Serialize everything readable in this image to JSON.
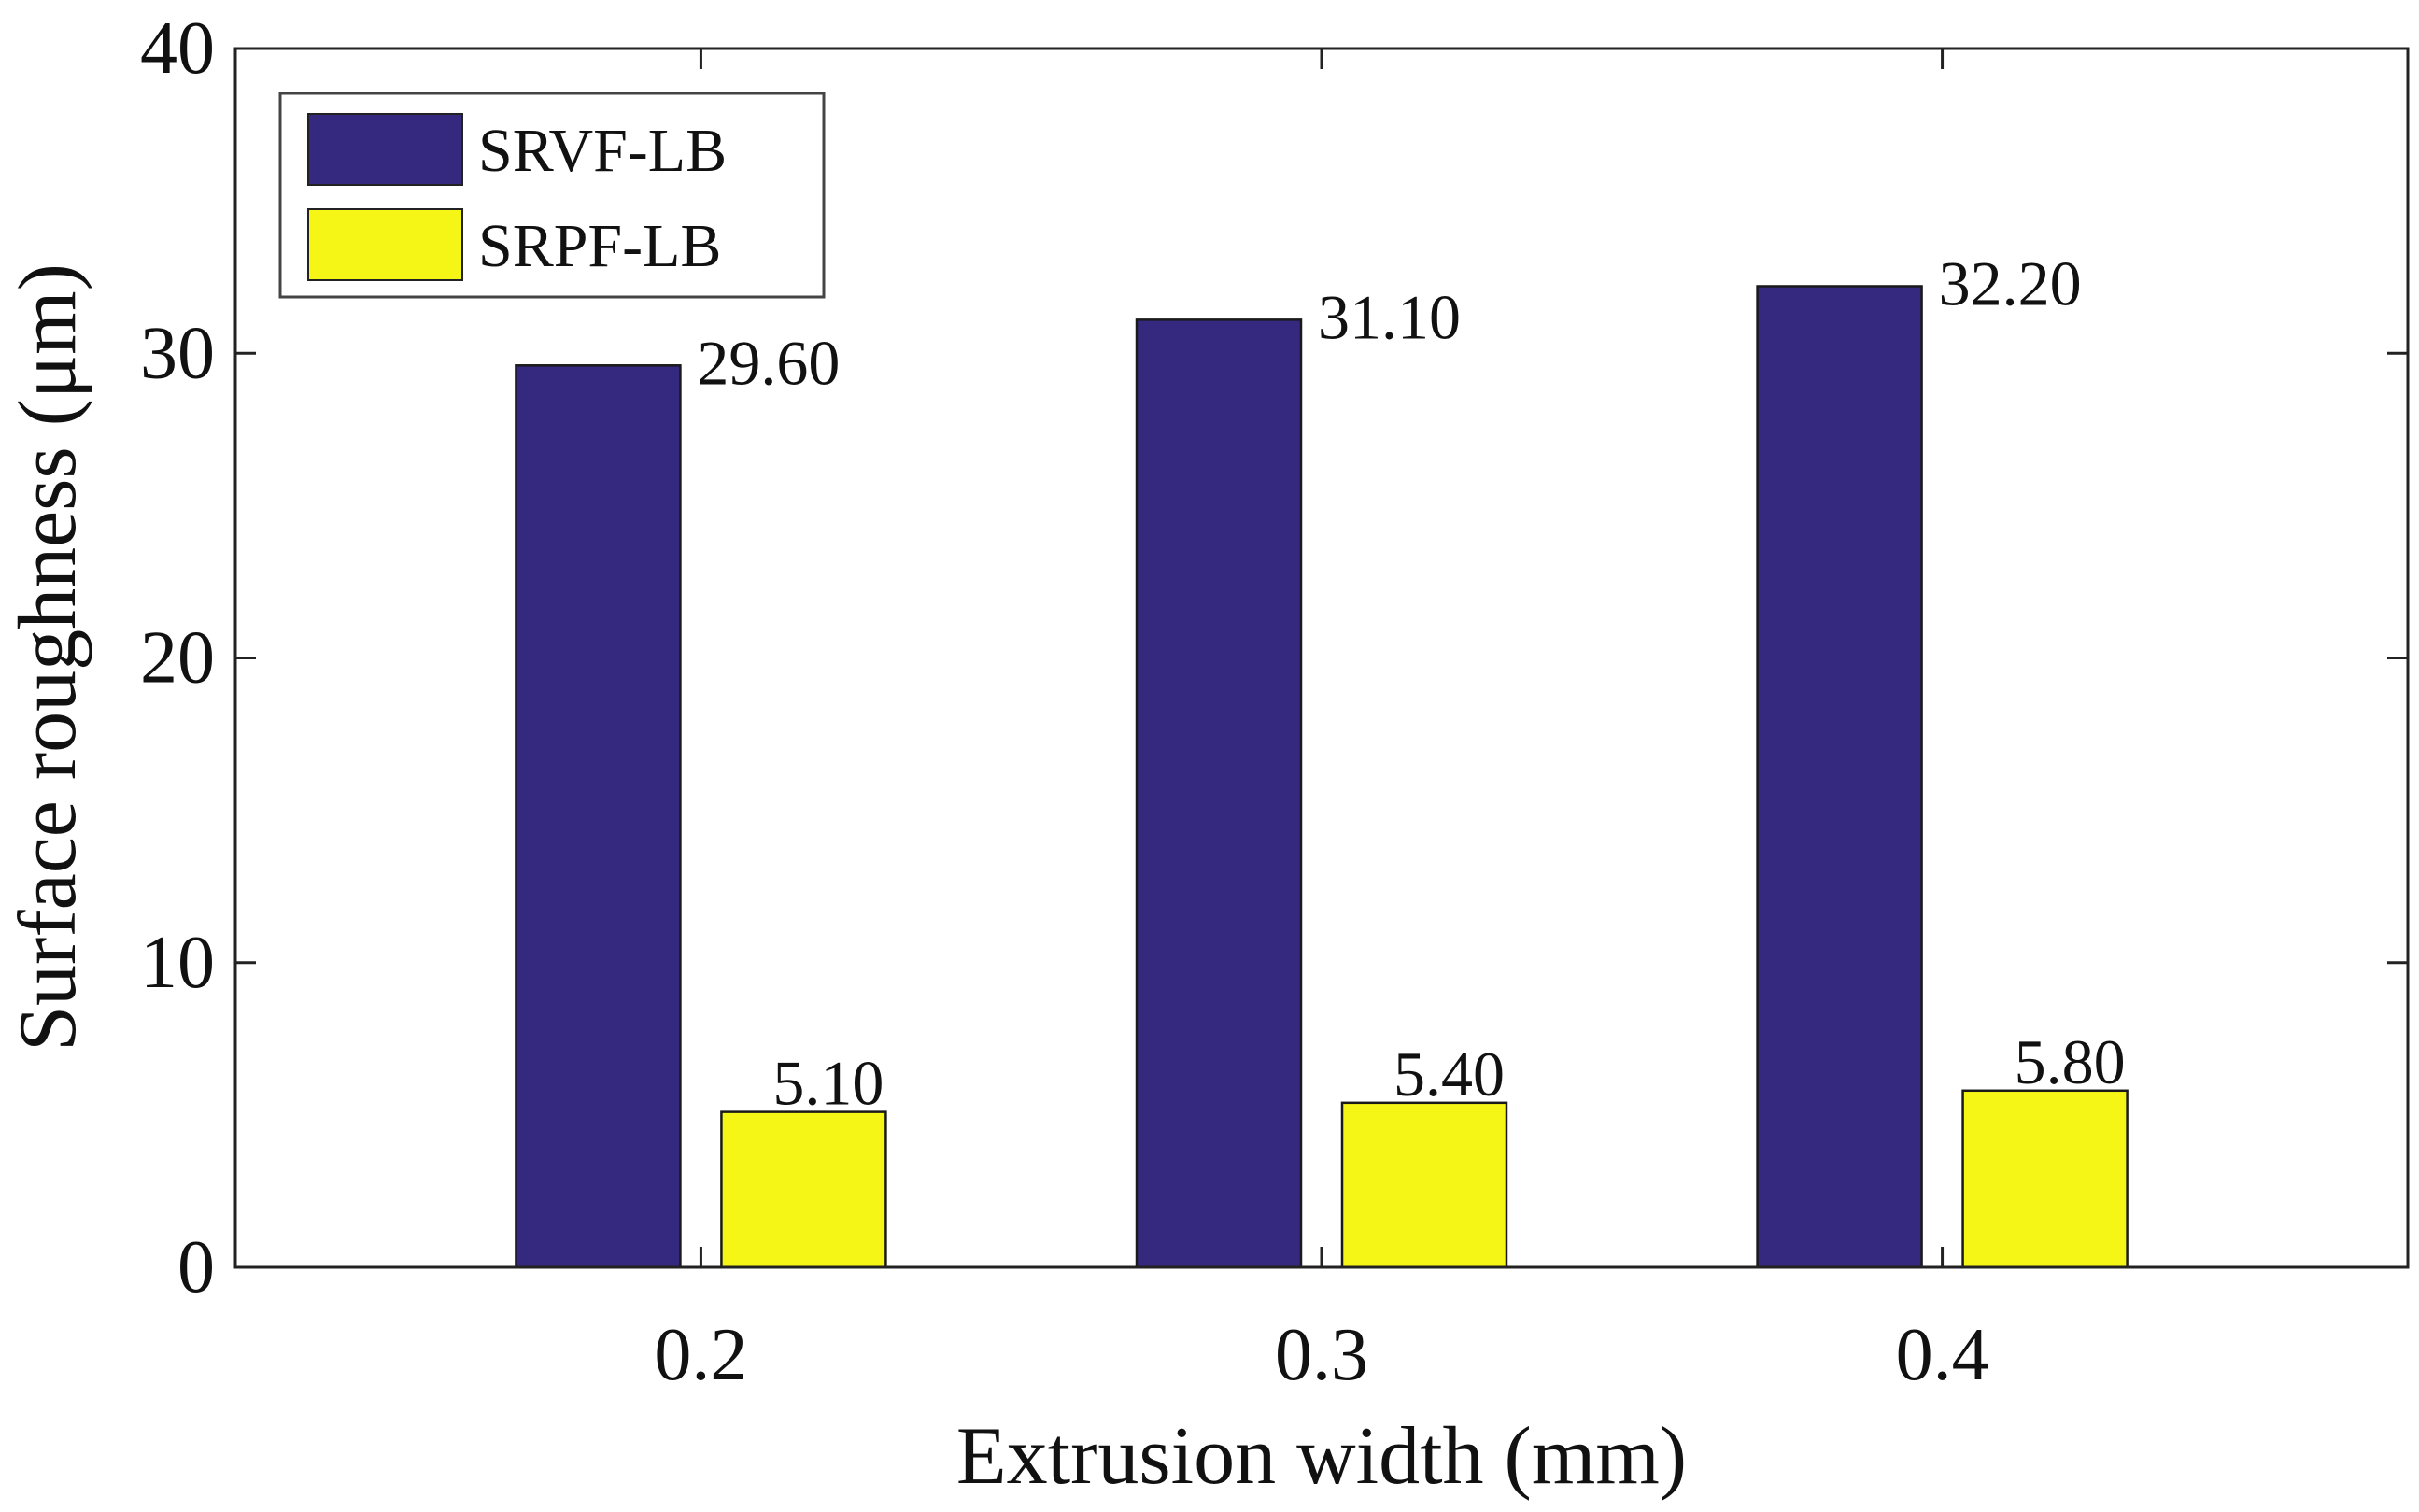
{
  "chart_data": {
    "type": "bar",
    "title": "",
    "xlabel": "Extrusion width (mm)",
    "ylabel": "Surface roughness (μm)",
    "categories": [
      "0.2",
      "0.3",
      "0.4"
    ],
    "ylim": [
      0,
      40
    ],
    "yticks": [
      0,
      10,
      20,
      30,
      40
    ],
    "ytick_labels": [
      "0",
      "10",
      "20",
      "30",
      "40"
    ],
    "grid": false,
    "legend_position": "top-left",
    "series": [
      {
        "name": "SRVF-LB",
        "color": "#34287f",
        "values": [
          29.6,
          31.1,
          32.2
        ],
        "labels": [
          "29.60",
          "31.10",
          "32.20"
        ]
      },
      {
        "name": "SRPF-LB",
        "color": "#f5f516",
        "values": [
          5.1,
          5.4,
          5.8
        ],
        "labels": [
          "5.10",
          "5.40",
          "5.80"
        ]
      }
    ]
  }
}
